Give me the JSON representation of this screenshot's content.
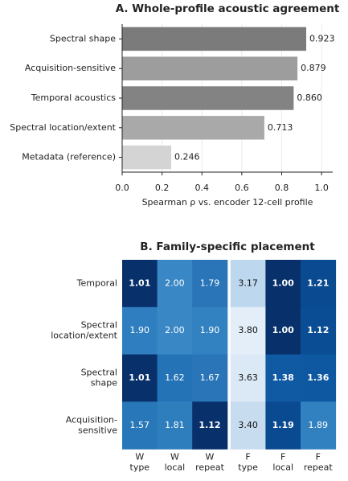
{
  "chart_data": [
    {
      "type": "hbar",
      "title": "A. Whole-profile acoustic agreement",
      "categories": [
        "Spectral shape",
        "Acquisition-sensitive",
        "Temporal acoustics",
        "Spectral location/extent",
        "Metadata (reference)"
      ],
      "values": [
        0.923,
        0.879,
        0.86,
        0.713,
        0.246
      ],
      "value_labels": [
        "0.923",
        "0.879",
        "0.860",
        "0.713",
        "0.246"
      ],
      "colors": [
        "#7b7b7b",
        "#9d9d9d",
        "#838383",
        "#a9a9a9",
        "#d4d4d4"
      ],
      "xlabel": "Spearman ρ vs. encoder 12-cell profile",
      "xlim": [
        0,
        1.056
      ],
      "xticks": [
        {
          "value": 0,
          "label": "0.0"
        },
        0.2,
        0.4,
        0.6,
        0.8,
        {
          "value": 1,
          "label": "1.0"
        }
      ],
      "grid": true
    },
    {
      "type": "heatmap",
      "title": "B. Family-specific placement",
      "rows": [
        "Temporal",
        "Spectral\nlocation/extent",
        "Spectral\nshape",
        "Acquisition-\nsensitive"
      ],
      "columns": [
        "W\ntype",
        "W\nlocal",
        "W\nrepeat",
        "F\ntype",
        "F\nlocal",
        "F\nrepeat"
      ],
      "values": [
        [
          1.01,
          2.0,
          1.79,
          3.17,
          1.0,
          1.21
        ],
        [
          1.9,
          2.0,
          1.9,
          3.8,
          1.0,
          1.12
        ],
        [
          1.01,
          1.62,
          1.67,
          3.63,
          1.38,
          1.36
        ],
        [
          1.57,
          1.81,
          1.12,
          3.4,
          1.19,
          1.89
        ]
      ],
      "value_labels": [
        [
          "1.01",
          "2.00",
          "1.79",
          "3.17",
          "1.00",
          "1.21"
        ],
        [
          "1.90",
          "2.00",
          "1.90",
          "3.80",
          "1.00",
          "1.12"
        ],
        [
          "1.01",
          "1.62",
          "1.67",
          "3.63",
          "1.38",
          "1.36"
        ],
        [
          "1.57",
          "1.81",
          "1.12",
          "3.40",
          "1.19",
          "1.89"
        ]
      ],
      "colors": [
        [
          "#08306b",
          "#3a87c5",
          "#2a74b8",
          "#bdd7ee",
          "#08306b",
          "#0a4a90"
        ],
        [
          "#2f7ebf",
          "#3a87c5",
          "#3282c2",
          "#e3eef9",
          "#08306b",
          "#0b4d94"
        ],
        [
          "#08306b",
          "#2373b6",
          "#2a75b7",
          "#dbe9f6",
          "#0f5aa3",
          "#0e58a1"
        ],
        [
          "#2877b8",
          "#2e7ebe",
          "#08306b",
          "#c8dcf0",
          "#0a4a90",
          "#3181c1"
        ]
      ],
      "bold": [
        [
          true,
          false,
          false,
          false,
          true,
          true
        ],
        [
          false,
          false,
          false,
          false,
          true,
          true
        ],
        [
          true,
          false,
          false,
          false,
          true,
          true
        ],
        [
          false,
          false,
          true,
          false,
          true,
          false
        ]
      ]
    }
  ]
}
